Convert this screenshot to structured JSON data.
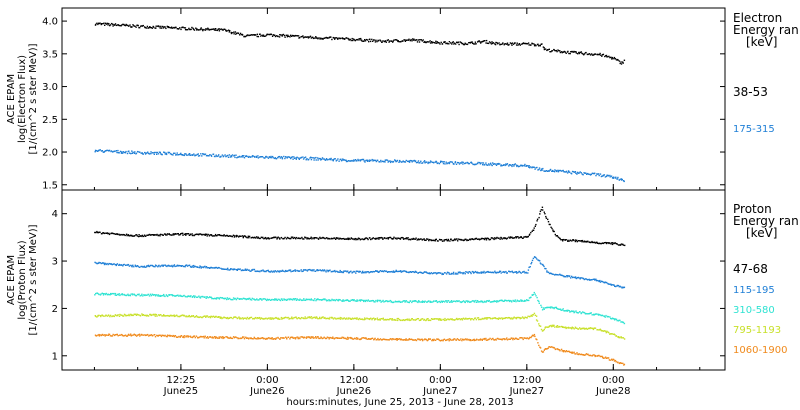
{
  "x_axis": {
    "label": "hours:minutes, June 25, 2013 - June 28, 2013",
    "ticks": [
      {
        "t": 12,
        "top": "12:25",
        "bottom": "June25"
      },
      {
        "t": 24,
        "top": "0:00",
        "bottom": "June26"
      },
      {
        "t": 36,
        "top": "12:00",
        "bottom": "June26"
      },
      {
        "t": 48,
        "top": "0:00",
        "bottom": "June27"
      },
      {
        "t": 60,
        "top": "12:00",
        "bottom": "June27"
      },
      {
        "t": 72,
        "top": "0:00",
        "bottom": "June28"
      }
    ]
  },
  "chart_data": [
    {
      "type": "scatter",
      "panel": "electron",
      "ylabel_lines": [
        "ACE EPAM",
        "log(Electron Flux)",
        "[1/(cm^2 s ster MeV)]"
      ],
      "ylim": [
        1.42,
        4.2
      ],
      "yticks": [
        "1.5",
        "2.0",
        "2.5",
        "3.0",
        "3.5",
        "4.0"
      ],
      "ytick_values": [
        1.5,
        2.0,
        2.5,
        3.0,
        3.5,
        4.0
      ],
      "legend_title": [
        "Electron",
        "Energy ran",
        "[keV]"
      ],
      "series": [
        {
          "name": "38-53",
          "color": "#000000",
          "x": [
            0,
            6,
            12,
            18,
            21,
            24,
            30,
            36,
            40,
            44,
            48,
            52,
            54,
            56,
            58,
            60,
            62,
            62.5,
            66,
            70,
            72,
            73,
            73.5
          ],
          "y": [
            3.97,
            3.93,
            3.9,
            3.87,
            3.78,
            3.8,
            3.76,
            3.73,
            3.7,
            3.72,
            3.68,
            3.67,
            3.7,
            3.66,
            3.66,
            3.66,
            3.65,
            3.57,
            3.53,
            3.5,
            3.44,
            3.37,
            3.4
          ]
        },
        {
          "name": "175-315",
          "color": "#1f7fd6",
          "x": [
            0,
            6,
            12,
            18,
            24,
            30,
            36,
            42,
            48,
            54,
            60,
            62,
            66,
            70,
            72,
            73.5
          ],
          "y": [
            2.03,
            2.0,
            1.98,
            1.95,
            1.93,
            1.91,
            1.88,
            1.87,
            1.85,
            1.83,
            1.8,
            1.74,
            1.7,
            1.66,
            1.62,
            1.58
          ]
        }
      ]
    },
    {
      "type": "scatter",
      "panel": "proton",
      "ylabel_lines": [
        "ACE EPAM",
        "log(Proton Flux)",
        "[1/(cm^2 s ster MeV)]"
      ],
      "ylim": [
        0.7,
        4.5
      ],
      "yticks": [
        "1",
        "2",
        "3",
        "4"
      ],
      "ytick_values": [
        1,
        2,
        3,
        4
      ],
      "legend_title": [
        "Proton",
        "Energy ran",
        "[keV]"
      ],
      "series": [
        {
          "name": "47-68",
          "color": "#000000",
          "x": [
            0,
            6,
            12,
            18,
            24,
            30,
            36,
            42,
            48,
            54,
            60,
            61,
            62,
            63,
            64,
            65,
            66,
            70,
            72,
            73.5
          ],
          "y": [
            3.62,
            3.55,
            3.58,
            3.55,
            3.5,
            3.5,
            3.48,
            3.5,
            3.45,
            3.48,
            3.52,
            3.7,
            4.15,
            3.8,
            3.55,
            3.45,
            3.45,
            3.4,
            3.38,
            3.36
          ]
        },
        {
          "name": "115-195",
          "color": "#1f7fd6",
          "x": [
            0,
            6,
            12,
            18,
            24,
            30,
            36,
            42,
            48,
            54,
            60,
            61,
            62,
            63,
            66,
            70,
            72,
            73.5
          ],
          "y": [
            2.98,
            2.9,
            2.92,
            2.85,
            2.8,
            2.82,
            2.78,
            2.8,
            2.75,
            2.78,
            2.78,
            3.12,
            2.95,
            2.75,
            2.68,
            2.6,
            2.5,
            2.45
          ]
        },
        {
          "name": "310-580",
          "color": "#2fe3d2",
          "x": [
            0,
            6,
            12,
            18,
            24,
            30,
            36,
            42,
            48,
            54,
            60,
            61,
            62,
            63,
            66,
            70,
            72,
            73.5
          ],
          "y": [
            2.32,
            2.3,
            2.28,
            2.22,
            2.2,
            2.2,
            2.18,
            2.16,
            2.16,
            2.16,
            2.18,
            2.35,
            2.0,
            2.05,
            1.95,
            1.88,
            1.8,
            1.7
          ]
        },
        {
          "name": "795-1193",
          "color": "#c8e02a",
          "x": [
            0,
            6,
            12,
            18,
            24,
            30,
            36,
            42,
            48,
            54,
            60,
            61,
            62,
            63,
            66,
            70,
            72,
            73.5
          ],
          "y": [
            1.85,
            1.88,
            1.86,
            1.82,
            1.8,
            1.82,
            1.8,
            1.78,
            1.78,
            1.8,
            1.82,
            1.9,
            1.55,
            1.65,
            1.6,
            1.58,
            1.45,
            1.38
          ]
        },
        {
          "name": "1060-1900",
          "color": "#f08a1c",
          "x": [
            0,
            6,
            12,
            18,
            24,
            30,
            36,
            42,
            48,
            54,
            60,
            61,
            62,
            63,
            66,
            70,
            72,
            73.5
          ],
          "y": [
            1.45,
            1.45,
            1.42,
            1.4,
            1.38,
            1.4,
            1.38,
            1.36,
            1.35,
            1.36,
            1.38,
            1.45,
            1.1,
            1.2,
            1.08,
            1.0,
            0.92,
            0.82
          ]
        }
      ]
    }
  ]
}
